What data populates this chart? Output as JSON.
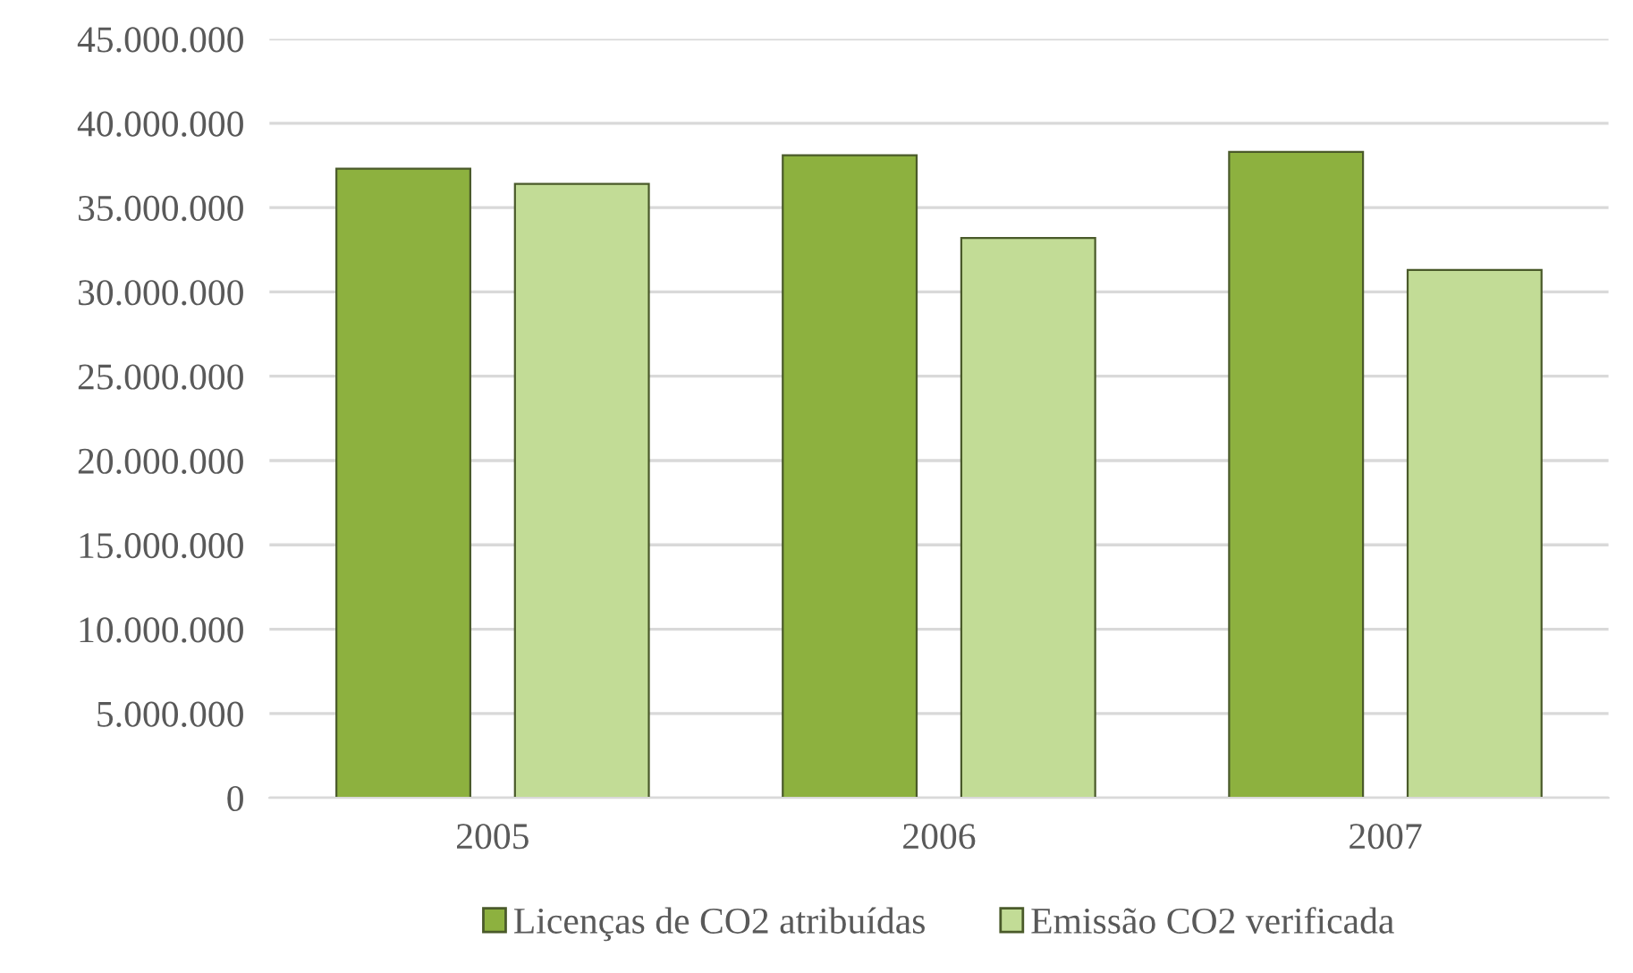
{
  "chart_data": {
    "type": "bar",
    "categories": [
      "2005",
      "2006",
      "2007"
    ],
    "series": [
      {
        "name": "Licenças de CO2 atribuídas",
        "color": "#8db13f",
        "values": [
          37300000,
          38100000,
          38300000
        ]
      },
      {
        "name": "Emissão CO2 verificada",
        "color": "#c2dc96",
        "values": [
          36400000,
          33200000,
          31300000
        ]
      }
    ],
    "ylim": [
      0,
      45000000
    ],
    "yticks": [
      {
        "value": 0,
        "label": "0"
      },
      {
        "value": 5000000,
        "label": "5.000.000"
      },
      {
        "value": 10000000,
        "label": "10.000.000"
      },
      {
        "value": 15000000,
        "label": "15.000.000"
      },
      {
        "value": 20000000,
        "label": "20.000.000"
      },
      {
        "value": 25000000,
        "label": "25.000.000"
      },
      {
        "value": 30000000,
        "label": "30.000.000"
      },
      {
        "value": 35000000,
        "label": "35.000.000"
      },
      {
        "value": 40000000,
        "label": "40.000.000"
      },
      {
        "value": 45000000,
        "label": "45.000.000"
      }
    ],
    "grid": "y",
    "legend": "bottom"
  }
}
